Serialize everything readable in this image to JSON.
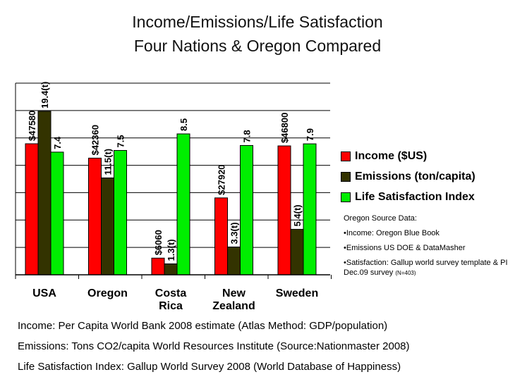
{
  "chart_data": {
    "type": "bar",
    "title": "Income/Emissions/Life Satisfaction",
    "subtitle": "Four Nations & Oregon Compared",
    "categories": [
      "USA",
      "Oregon",
      "Costa Rica",
      "New Zealand",
      "Sweden"
    ],
    "category_lines": [
      [
        "USA"
      ],
      [
        "Oregon"
      ],
      [
        "Costa",
        "Rica"
      ],
      [
        "New",
        "Zealand"
      ],
      [
        "Sweden"
      ]
    ],
    "series": [
      {
        "name": "Income ($US)",
        "color": "#ff0000",
        "values": [
          47580,
          42360,
          6060,
          27920,
          46800
        ],
        "labels": [
          "$47580",
          "$42360",
          "$6060",
          "$27920",
          "$46800"
        ]
      },
      {
        "name": "Emissions (ton/capita)",
        "color": "#333300",
        "values": [
          19.4,
          11.5,
          1.3,
          3.3,
          5.4
        ],
        "labels": [
          "19.4(t)",
          "11.5(t)",
          "1.3(t)",
          "3.3(t)",
          "5.4(t)"
        ]
      },
      {
        "name": "Life Satisfaction Index",
        "color": "#00ee00",
        "values": [
          7.4,
          7.5,
          8.5,
          7.8,
          7.9
        ],
        "labels": [
          "7.4",
          "7.5",
          "8.5",
          "7.8",
          "7.9"
        ]
      }
    ],
    "grid": true,
    "legend_position": "right"
  },
  "sources": {
    "heading": "Oregon Source Data:",
    "income": "•Income: Oregon Blue Book",
    "emissions": "•Emissions US DOE & DataMasher",
    "satisfaction": "•Satisfaction: Gallup world survey template & PI Dec.09 survey",
    "satisfaction_n": "(N=403)"
  },
  "footnotes": {
    "income": "Income:  Per Capita  World Bank 2008 estimate (Atlas Method: GDP/population)",
    "emissions": "Emissions: Tons CO2/capita  World Resources Institute (Source:Nationmaster 2008)",
    "satisfaction": "Life Satisfaction Index: Gallup World Survey 2008 (World Database of Happiness)"
  }
}
